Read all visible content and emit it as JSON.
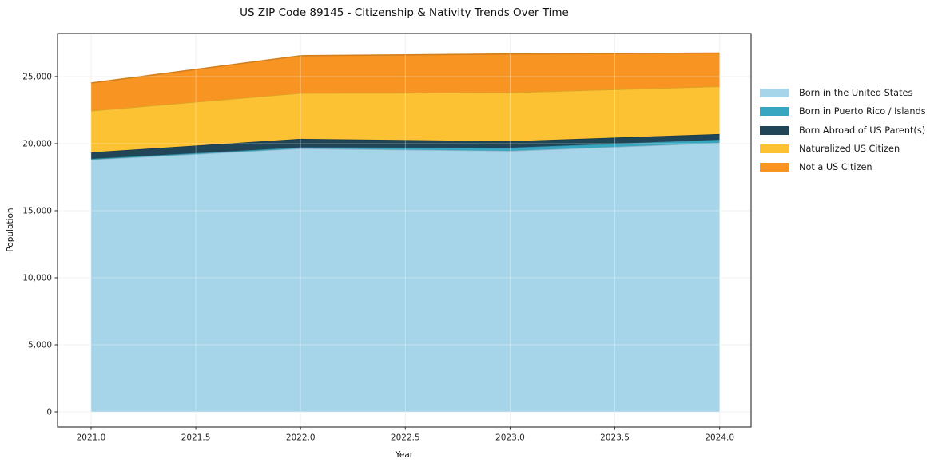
{
  "figure": {
    "title": "US ZIP Code 89145 - Citizenship & Nativity Trends Over Time",
    "xlabel": "Year",
    "ylabel": "Population"
  },
  "chart_data": {
    "type": "area",
    "stacked": true,
    "title": "US ZIP Code 89145 - Citizenship & Nativity Trends Over Time",
    "xlabel": "Year",
    "ylabel": "Population",
    "x": [
      2021,
      2022,
      2023,
      2024
    ],
    "series": [
      {
        "name": "Born in the United States",
        "color": "#a6d4e8",
        "values": [
          18810,
          19640,
          19460,
          20060
        ]
      },
      {
        "name": "Born in Puerto Rico / Islands",
        "color": "#39a6c1",
        "values": [
          60,
          80,
          240,
          240
        ]
      },
      {
        "name": "Born Abroad of US Parent(s)",
        "color": "#1f4557",
        "values": [
          480,
          640,
          480,
          420
        ]
      },
      {
        "name": "Naturalized US Citizen",
        "color": "#fcc233",
        "values": [
          3100,
          3410,
          3630,
          3550
        ]
      },
      {
        "name": "Not a US Citizen",
        "color": "#f79422",
        "values": [
          2070,
          2780,
          2870,
          2480
        ]
      }
    ],
    "totals": [
      24520,
      26550,
      26680,
      26750
    ],
    "x_ticks": [
      2021.0,
      2021.5,
      2022.0,
      2022.5,
      2023.0,
      2023.5,
      2024.0
    ],
    "x_tick_labels": [
      "2021.0",
      "2021.5",
      "2022.0",
      "2022.5",
      "2023.0",
      "2023.5",
      "2024.0"
    ],
    "y_ticks": [
      0,
      5000,
      10000,
      15000,
      20000,
      25000
    ],
    "y_tick_labels": [
      "0",
      "5,000",
      "10,000",
      "15,000",
      "20,000",
      "25,000"
    ],
    "xlim": [
      2020.84,
      2024.15
    ],
    "ylim": [
      -1130,
      28210
    ],
    "grid": true,
    "grid_color": "#ebebeb",
    "spine_color": "#2b2b2b",
    "tick_label_color": "#262626",
    "legend_position": "right-outside"
  }
}
